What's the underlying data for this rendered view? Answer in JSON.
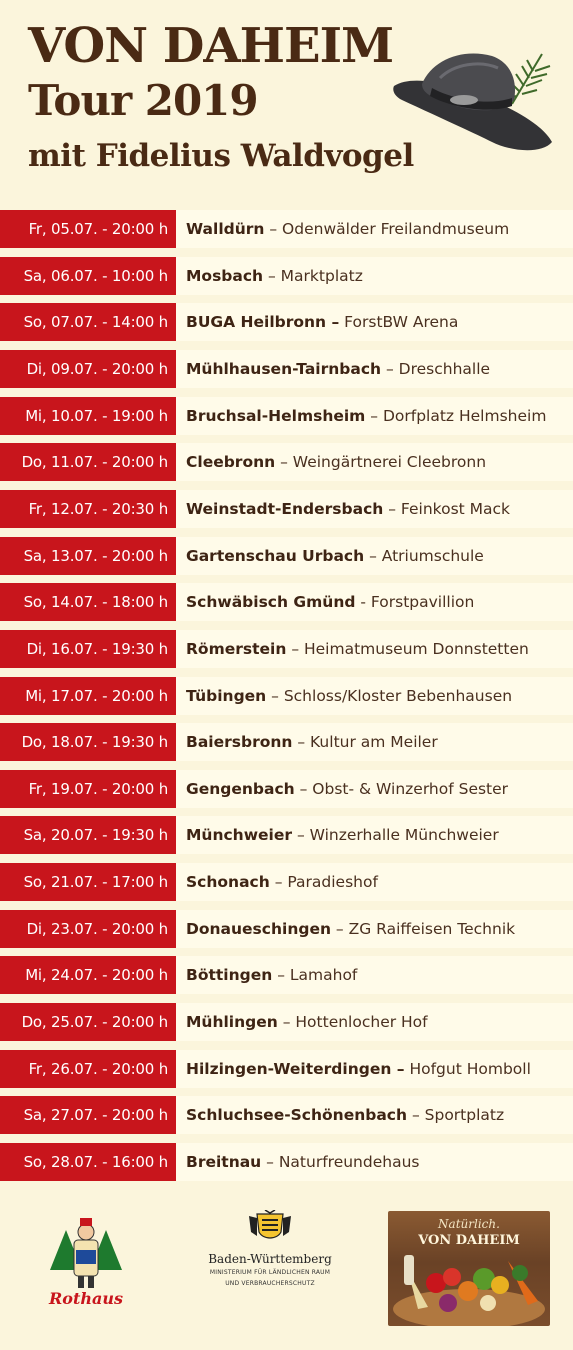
{
  "header": {
    "line1": "VON DAHEIM",
    "line2": "Tour 2019",
    "line3": "mit Fidelius Waldvogel"
  },
  "events": [
    {
      "date": "Fr, 05.07. - 20:00 h",
      "city": "Walldürn",
      "place": " – Odenwälder Freilandmuseum"
    },
    {
      "date": "Sa, 06.07. - 10:00 h",
      "city": "Mosbach",
      "place": " – Marktplatz"
    },
    {
      "date": "So, 07.07. - 14:00 h",
      "city": "BUGA Heilbronn –",
      "place": " ForstBW Arena"
    },
    {
      "date": "Di, 09.07. - 20:00 h",
      "city": "Mühlhausen-Tairnbach",
      "place": " – Dreschhalle"
    },
    {
      "date": "Mi, 10.07. - 19:00 h",
      "city": "Bruchsal-Helmsheim",
      "place": " – Dorfplatz Helmsheim"
    },
    {
      "date": "Do, 11.07. - 20:00 h",
      "city": "Cleebronn",
      "place": " – Weingärtnerei Cleebronn"
    },
    {
      "date": "Fr, 12.07. - 20:30 h",
      "city": "Weinstadt-Endersbach",
      "place": " – Feinkost Mack"
    },
    {
      "date": "Sa, 13.07. - 20:00 h",
      "city": "Gartenschau Urbach",
      "place": " – Atriumschule"
    },
    {
      "date": "So, 14.07. - 18:00 h",
      "city": "Schwäbisch Gmünd",
      "place": " - Forstpavillion"
    },
    {
      "date": "Di, 16.07. - 19:30 h",
      "city": "Römerstein",
      "place": " – Heimatmuseum Donnstetten"
    },
    {
      "date": "Mi, 17.07. - 20:00 h",
      "city": "Tübingen",
      "place": " – Schloss/Kloster Bebenhausen"
    },
    {
      "date": "Do, 18.07. - 19:30 h",
      "city": "Baiersbronn",
      "place": " – Kultur am Meiler"
    },
    {
      "date": "Fr, 19.07. - 20:00 h",
      "city": "Gengenbach",
      "place": " – Obst- & Winzerhof Sester"
    },
    {
      "date": "Sa, 20.07. - 19:30 h",
      "city": "Münchweier",
      "place": " – Winzerhalle Münchweier"
    },
    {
      "date": "So, 21.07. - 17:00 h",
      "city": "Schonach",
      "place": " – Paradieshof"
    },
    {
      "date": "Di, 23.07. - 20:00 h",
      "city": "Donaueschingen",
      "place": " – ZG Raiffeisen Technik"
    },
    {
      "date": "Mi, 24.07. - 20:00 h",
      "city": "Böttingen",
      "place": " – Lamahof"
    },
    {
      "date": "Do, 25.07. - 20:00 h",
      "city": "Mühlingen",
      "place": " – Hottenlocher Hof"
    },
    {
      "date": "Fr, 26.07. - 20:00 h",
      "city": "Hilzingen-Weiterdingen –",
      "place": " Hofgut Homboll"
    },
    {
      "date": "Sa, 27.07. - 20:00 h",
      "city": "Schluchsee-Schönenbach",
      "place": " – Sportplatz"
    },
    {
      "date": "So, 28.07. - 16:00 h",
      "city": "Breitnau",
      "place": " – Naturfreundehaus"
    }
  ],
  "footer": {
    "rothaus_logo": "Rothaus",
    "bw_name": "Baden-Württemberg",
    "bw_sub1": "MINISTERIUM FÜR LÄNDLICHEN RAUM",
    "bw_sub2": "UND VERBRAUCHERSCHUTZ",
    "vd_line1": "Natürlich.",
    "vd_line2": "VON DAHEIM"
  },
  "colors": {
    "background": "#fbf5dc",
    "date_red": "#c8151c",
    "title_brown": "#4a2a14"
  },
  "icons": {
    "hat": "hat-icon",
    "crest": "coat-of-arms-icon"
  }
}
